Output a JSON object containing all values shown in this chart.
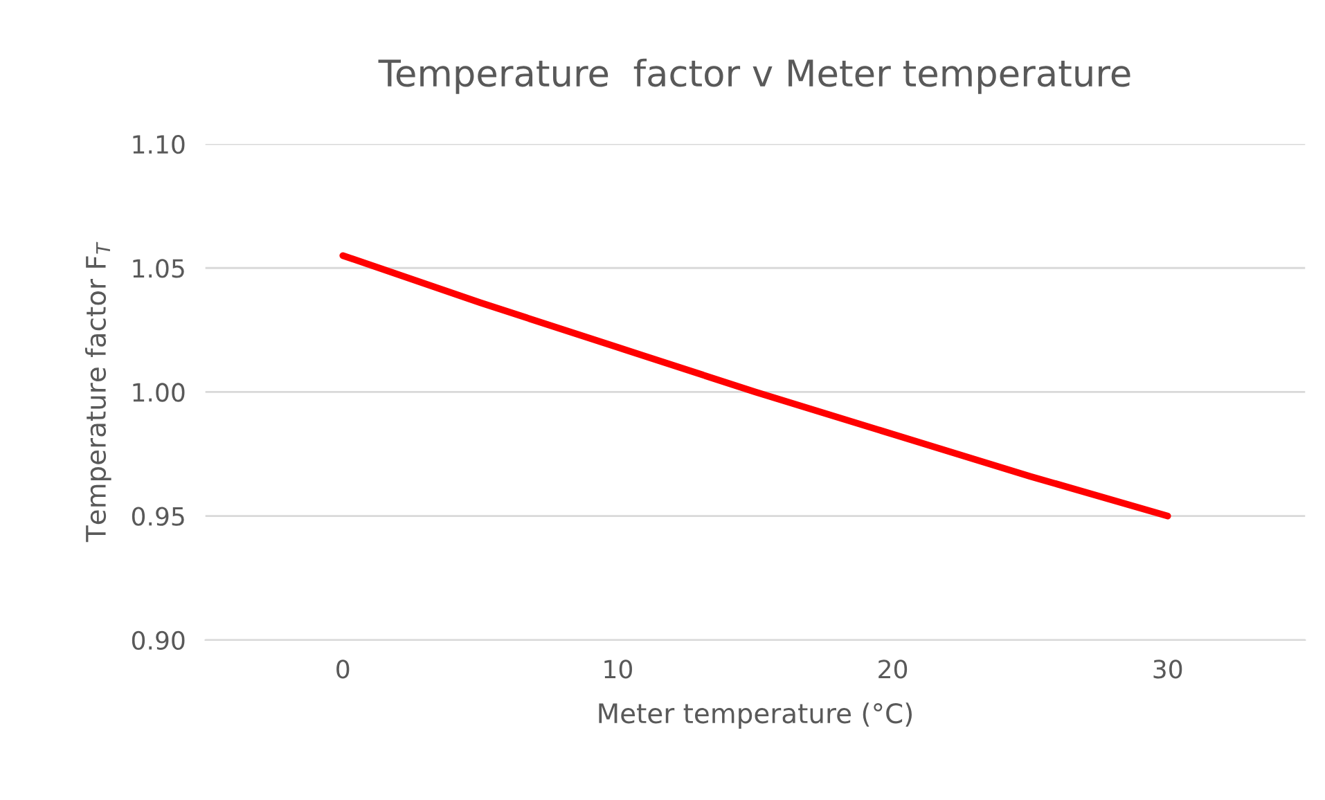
{
  "chart_data": {
    "type": "line",
    "title": "Temperature  factor v Meter temperature",
    "xlabel": "Meter temperature (°C)",
    "ylabel": "Temperature factor F$_{T}$",
    "x": [
      0,
      5,
      10,
      15,
      20,
      25,
      30
    ],
    "series": [
      {
        "color": "#ff0000",
        "values": [
          1.055,
          1.036,
          1.018,
          1.0,
          0.983,
          0.966,
          0.95
        ]
      }
    ],
    "xlim": [
      -5,
      35
    ],
    "xticks": [
      0,
      10,
      20,
      30
    ],
    "ylim": [
      0.9,
      1.1
    ],
    "yticks": [
      {
        "value": 0.9,
        "label": "0.90"
      },
      {
        "value": 0.95,
        "label": "0.95"
      },
      {
        "value": 1.0,
        "label": "1.00"
      },
      {
        "value": 1.05,
        "label": "1.05"
      },
      {
        "value": 1.1,
        "label": "1.10"
      }
    ],
    "grid": "y",
    "marker": "none",
    "line_style": "solid",
    "legend": false
  }
}
